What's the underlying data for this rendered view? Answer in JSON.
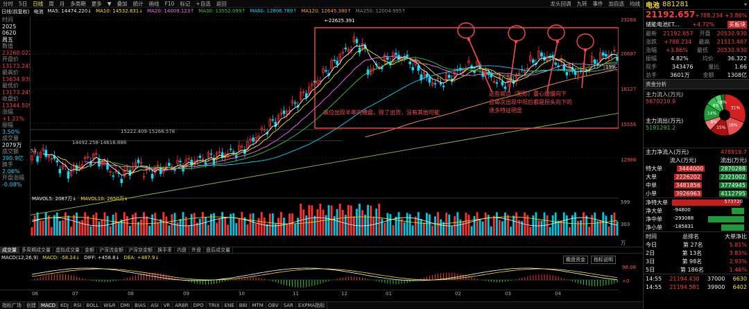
{
  "toolbar": {
    "items": [
      "分时",
      "5日",
      "日线",
      "周",
      "月",
      "多周期",
      "更多",
      "▼",
      "叠加",
      "统计",
      "画线",
      "F10",
      "标记",
      "+自选",
      "返回"
    ],
    "right": [
      "龙头回调",
      "九转",
      "事件",
      "加自选",
      "均线"
    ],
    "active": "日线"
  },
  "chart_header": {
    "label": "日线(前复权)",
    "name": "电池",
    "ma5": "MA5: 14474.220↓",
    "ma10": "MA10: 14532.831↓",
    "ma20": "MA20: 14009.123↑",
    "ma30": "MA30: 13552.099↑",
    "ma60": "MA60: 12806.789↑",
    "ma120": "MA120: 12645.380↑",
    "ma250": "MA250: 12004.995↑"
  },
  "left_panel": [
    {
      "label": "时间",
      "value": "2025",
      "c": "wht"
    },
    {
      "label": "",
      "value": "0620",
      "c": "wht"
    },
    {
      "label": "",
      "value": "周五",
      "c": "wht"
    },
    {
      "label": "数值",
      "value": "",
      "c": "wht"
    },
    {
      "label": "",
      "value": "23260.022",
      "c": "red"
    },
    {
      "label": "开盘价",
      "value": "13173.245",
      "c": "red"
    },
    {
      "label": "最高价",
      "value": "13634.939",
      "c": "red"
    },
    {
      "label": "最低价",
      "value": "13173.245",
      "c": "red"
    },
    {
      "label": "收盘价",
      "value": "13344.505",
      "c": "red"
    },
    {
      "label": "涨幅",
      "value": "+1.21%",
      "c": "red"
    },
    {
      "label": "振幅",
      "value": "3.50%",
      "c": "cy"
    },
    {
      "label": "成交量",
      "value": "2079万",
      "c": "wht"
    },
    {
      "label": "成交额",
      "value": "390.9亿",
      "c": "cy"
    },
    {
      "label": "换手",
      "value": "2.06%",
      "c": "cy"
    },
    {
      "label": "开盘涨幅",
      "value": "-0.08%",
      "c": "cy"
    }
  ],
  "price_axis": [
    "23268",
    "20697",
    "18127",
    "15556",
    "12986"
  ],
  "vol_axis": [
    "599",
    "303",
    "万"
  ],
  "macd_axis": [
    "98.08",
    "+0"
  ],
  "date_axis": [
    "06",
    "07",
    "08",
    "09",
    "10",
    "11",
    "12",
    "01",
    "02",
    "03",
    "04"
  ],
  "price_labels": {
    "peak": "22625.391",
    "mid1": "15222.409-15266.578",
    "mid2": "14492.258-14616.888",
    "low": "53",
    "last": "199"
  },
  "annotations": {
    "a1": "高位出现半年的横盘，除了出货，没有其他可能",
    "a2_1": "这些高点（图形）重心缓慢向下",
    "a2_2": "且每次出现中阳后都是拐头向下的",
    "a2_3": "诱多特征明显"
  },
  "vol_header": {
    "v5": "MAVOL5: 2087万↓",
    "v10": "MAVOL10: 2650万↓"
  },
  "vol_tabs": [
    "成交量",
    "多周期成交量",
    "虚拟成交量",
    "金额",
    "沪深流金额",
    "沪深京金额",
    "换手率",
    "内盘",
    "外盘",
    "盘后成交量"
  ],
  "macd_header": {
    "name": "MACD(12,26,9)",
    "macd": "MACD: -58.24↓",
    "diff": "DIFF: +458.8↓",
    "dea": "DEA: +487.9↓"
  },
  "macd_btns": [
    "瞻盘资金",
    "指标说明"
  ],
  "bottom_tabs": [
    "指标广场",
    "创建",
    "MACD",
    "KDJ",
    "RSI",
    "BOLL",
    "W&R",
    "DMI",
    "BIAS",
    "ASI",
    "VR",
    "ARBR",
    "DPO",
    "TRIX",
    "ENE",
    "BBI",
    "MTM",
    "OBV",
    "SAR",
    "EXPMA指标"
  ],
  "right_panel": {
    "title": "电池",
    "code": "881281",
    "price": "21192.657",
    "chg": "+788.234",
    "pct": "+3.86%",
    "tag": "储能电池ET...",
    "tag_pct": "+4.72%",
    "tag_btn": "买板块",
    "quote": [
      {
        "l1": "最新",
        "v1": "21192.657",
        "c1": "red",
        "l2": "开盘",
        "v2": "20530.930",
        "c2": "red"
      },
      {
        "l1": "涨跌",
        "v1": "+788.234",
        "c1": "red",
        "l2": "最高",
        "v2": "21513.487",
        "c2": "red"
      },
      {
        "l1": "涨幅",
        "v1": "+3.86%",
        "c1": "red",
        "l2": "最低",
        "v2": "20530.930",
        "c2": "red"
      },
      {
        "l1": "振幅",
        "v1": "4.82%",
        "c1": "wht",
        "l2": "均价",
        "v2": "36.322",
        "c2": "wht"
      },
      {
        "l1": "现手",
        "v1": "343476",
        "c1": "wht",
        "l2": "量比",
        "v2": "1.66",
        "c2": "wht"
      },
      {
        "l1": "总手",
        "v1": "3601万",
        "c1": "wht",
        "l2": "金额",
        "v2": "1308亿",
        "c2": "wht"
      }
    ],
    "fund_title": "资金分析",
    "inflow_label": "主力流入(万元)",
    "inflow": "5670210.9",
    "outflow_label": "主力流出(万元)",
    "outflow": "5191291.2",
    "pie": [
      {
        "label": "31%",
        "value": 31,
        "color": "#d42020"
      },
      {
        "label": "16%",
        "value": 16,
        "color": "#e65050"
      },
      {
        "label": "15%",
        "value": 15,
        "color": "#aa1010"
      },
      {
        "label": "8%",
        "value": 8,
        "color": "#f07878"
      },
      {
        "label": "14%",
        "value": 14,
        "color": "#1e9a3a"
      },
      {
        "label": "8%",
        "value": 8,
        "color": "#2ec04c"
      },
      {
        "label": "5%",
        "value": 5,
        "color": "#58d070"
      },
      {
        "label": "3%",
        "value": 3,
        "color": "#16702a"
      }
    ],
    "net_label": "主力净流入(万元)",
    "net": "478919.7",
    "flow_head": [
      "",
      "流入(万元)",
      "流出(万元)"
    ],
    "flows": [
      {
        "n": "特大单",
        "in": "3444000",
        "out": "2870288"
      },
      {
        "n": "大单",
        "in": "2226202",
        "out": "2321002"
      },
      {
        "n": "中单",
        "in": "3481856",
        "out": "3774945"
      },
      {
        "n": "小单",
        "in": "3926963",
        "out": "4112795"
      }
    ],
    "nets": [
      {
        "n": "净特大单",
        "v": "573720",
        "f": 0.95,
        "pos": true
      },
      {
        "n": "净大单",
        "v": "-94800",
        "f": 0.17,
        "pos": false
      },
      {
        "n": "净中单",
        "v": "-293088",
        "f": 0.5,
        "pos": false
      },
      {
        "n": "净小单",
        "v": "-185831",
        "f": 0.32,
        "pos": false
      }
    ],
    "rank_head": [
      "时间",
      "总排名",
      "大单净比"
    ],
    "ranks": [
      {
        "t": "今日",
        "r": "第",
        "n": "27名",
        "p": "5.81%"
      },
      {
        "t": "2日",
        "r": "第",
        "n": "13名",
        "p": "3.83%"
      },
      {
        "t": "3日",
        "r": "第",
        "n": "98名",
        "p": "2.93%"
      },
      {
        "t": "5日",
        "r": "第",
        "n": "186名",
        "p": "1.46%"
      }
    ],
    "ticks": [
      {
        "t": "14:55",
        "p": "21194.430",
        "v": "37000",
        "x": "6630"
      },
      {
        "t": "14:55",
        "p": "21194.581",
        "v": "39900",
        "x": "6402"
      }
    ]
  }
}
